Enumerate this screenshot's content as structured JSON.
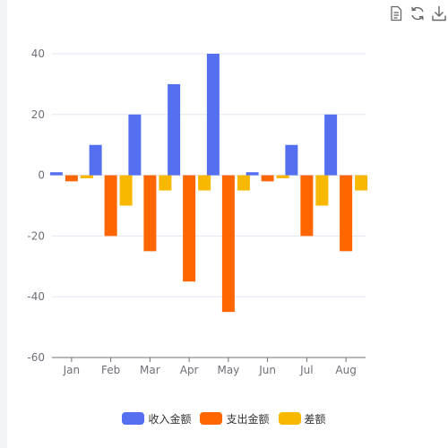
{
  "toolbox": {
    "icons": [
      "data-view-icon",
      "restore-icon",
      "save-as-image-icon"
    ]
  },
  "chart_data": {
    "type": "bar",
    "categories": [
      "Jan",
      "Feb",
      "Mar",
      "Apr",
      "May",
      "Jun",
      "Jul",
      "Aug"
    ],
    "series": [
      {
        "name": "收入金额",
        "color": "#5470f0",
        "values": [
          1,
          10,
          20,
          30,
          40,
          1,
          10,
          20
        ]
      },
      {
        "name": "支出金额",
        "color": "#ff6600",
        "values": [
          -2,
          -20,
          -25,
          -35,
          -45,
          -2,
          -20,
          -25
        ]
      },
      {
        "name": "差额",
        "color": "#f9b800",
        "values": [
          -1,
          -10,
          -5,
          -5,
          -5,
          -1,
          -10,
          -5
        ]
      }
    ],
    "ylim": [
      -60,
      40
    ],
    "yticks": [
      -60,
      -40,
      -20,
      0,
      20,
      40
    ],
    "grid": true,
    "legend_position": "bottom"
  }
}
